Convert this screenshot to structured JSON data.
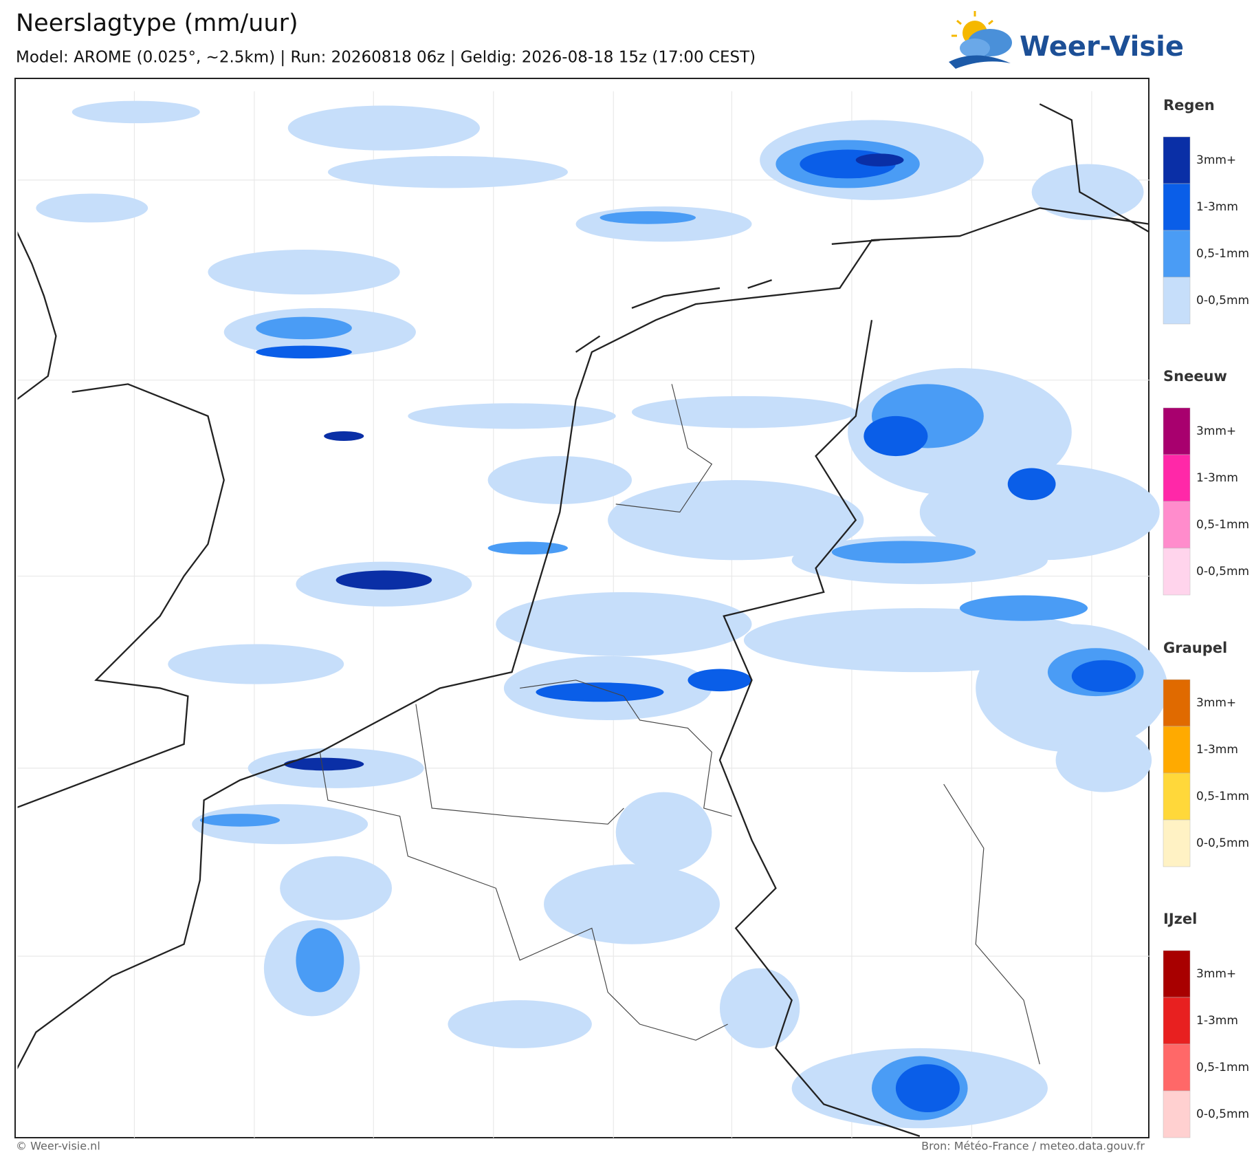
{
  "header": {
    "title": "Neerslagtype (mm/uur)",
    "subtitle": "Model: AROME (0.025°, ~2.5km)  |  Run: 20260818 06z  |  Geldig: 2026-08-18 15z (17:00 CEST)",
    "logo": "Weer-Visie"
  },
  "legend": [
    {
      "title": "Regen",
      "colors": [
        "#0a2fa6",
        "#0a5ee8",
        "#4a9cf5",
        "#c6defa"
      ],
      "labels": [
        "3mm+",
        "1-3mm",
        "0,5-1mm",
        "0-0,5mm"
      ]
    },
    {
      "title": "Sneeuw",
      "colors": [
        "#a8006e",
        "#ff28a8",
        "#ff8ccc",
        "#ffd4ec"
      ],
      "labels": [
        "3mm+",
        "1-3mm",
        "0,5-1mm",
        "0-0,5mm"
      ]
    },
    {
      "title": "Graupel",
      "colors": [
        "#e06a00",
        "#ffaa00",
        "#ffd83a",
        "#fff2c4"
      ],
      "labels": [
        "3mm+",
        "1-3mm",
        "0,5-1mm",
        "0-0,5mm"
      ]
    },
    {
      "title": "IJzel",
      "colors": [
        "#a80000",
        "#e82020",
        "#ff6868",
        "#ffd0d0"
      ],
      "labels": [
        "3mm+",
        "1-3mm",
        "0,5-1mm",
        "0-0,5mm"
      ]
    }
  ],
  "footer": {
    "left": "© Weer-visie.nl",
    "right": "Bron: Météo-France / meteo.data.gouv.fr"
  }
}
